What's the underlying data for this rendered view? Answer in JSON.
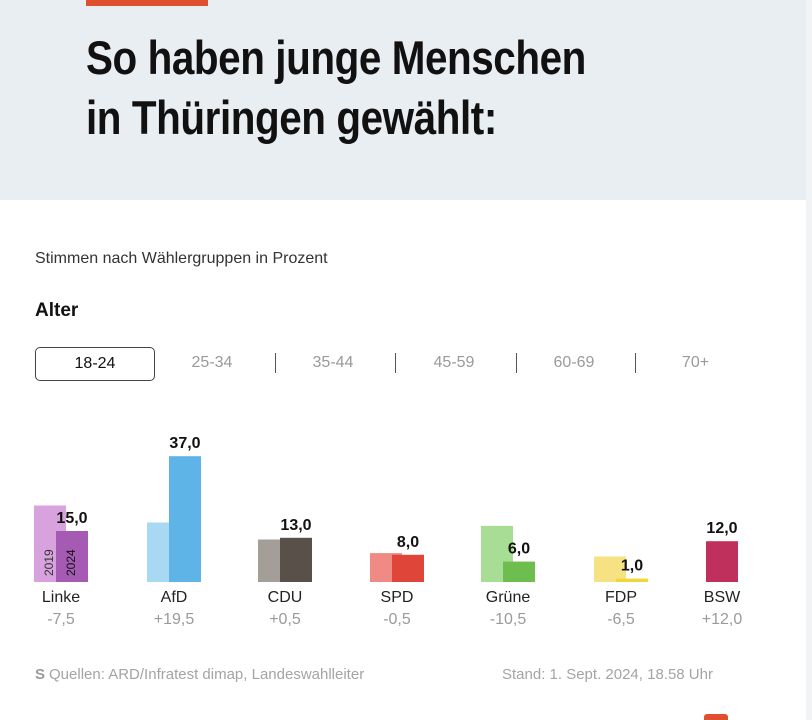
{
  "header": {
    "title_line1": "So haben junge Menschen",
    "title_line2": "in Thüringen gewählt:",
    "accent_color": "#e0502f",
    "background": "#e9eef2"
  },
  "subtitle": "Stimmen nach Wählergruppen in Prozent",
  "section_label": "Alter",
  "tabs": [
    {
      "label": "18-24",
      "active": true
    },
    {
      "label": "25-34",
      "active": false
    },
    {
      "label": "35-44",
      "active": false
    },
    {
      "label": "45-59",
      "active": false
    },
    {
      "label": "60-69",
      "active": false
    },
    {
      "label": "70+",
      "active": false
    }
  ],
  "chart_data": {
    "type": "bar",
    "categories": [
      "Linke",
      "AfD",
      "CDU",
      "SPD",
      "Grüne",
      "FDP",
      "BSW"
    ],
    "series": [
      {
        "name": "2019",
        "values": [
          22.5,
          17.5,
          12.5,
          8.5,
          16.5,
          7.5,
          null
        ]
      },
      {
        "name": "2024",
        "values": [
          15.0,
          37.0,
          13.0,
          8.0,
          6.0,
          1.0,
          12.0
        ]
      }
    ],
    "value_labels": [
      "15,0",
      "37,0",
      "13,0",
      "8,0",
      "6,0",
      "1,0",
      "12,0"
    ],
    "changes": [
      "-7,5",
      "+19,5",
      "+0,5",
      "-0,5",
      "-10,5",
      "-6,5",
      "+12,0"
    ],
    "colors_2019": [
      "#d8a2de",
      "#a8d8f2",
      "#a49e99",
      "#ef8a84",
      "#a8dd96",
      "#f7e283",
      null
    ],
    "colors_2024": [
      "#a55ab4",
      "#5eb4e6",
      "#5a504a",
      "#df4538",
      "#6dbd4f",
      "#f1d63a",
      "#c0305c"
    ],
    "year_labels": [
      "2019",
      "2024"
    ],
    "ylim": [
      0,
      40
    ],
    "legend": "none"
  },
  "footer": {
    "logo": "S",
    "source": "Quellen: ARD/Infratest dimap, Landeswahlleiter",
    "stand": "Stand: 1. Sept. 2024, 18.58 Uhr"
  }
}
